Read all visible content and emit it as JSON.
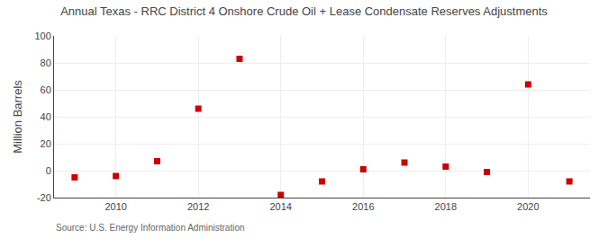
{
  "chart_data": {
    "type": "scatter",
    "title": "Annual Texas - RRC District 4 Onshore Crude Oil + Lease Condensate Reserves Adjustments",
    "y_label": "Million Barrels",
    "annotations": [
      "Source: U.S. Energy Information Administration"
    ],
    "x": [
      2009,
      2010,
      2011,
      2012,
      2013,
      2014,
      2015,
      2016,
      2017,
      2018,
      2019,
      2020,
      2021
    ],
    "values": [
      -5,
      -4,
      7,
      46,
      83,
      -18,
      -8,
      1,
      6,
      3,
      -1,
      64,
      -8
    ],
    "color": "#cc0000",
    "marker": "square",
    "xlim": [
      2008.5,
      2021.5
    ],
    "xticks": [
      2010,
      2012,
      2014,
      2016,
      2018,
      2020
    ],
    "ylim": [
      -20,
      100
    ],
    "yticks": [
      -20,
      0,
      20,
      40,
      60,
      80,
      100
    ],
    "grid": true
  }
}
